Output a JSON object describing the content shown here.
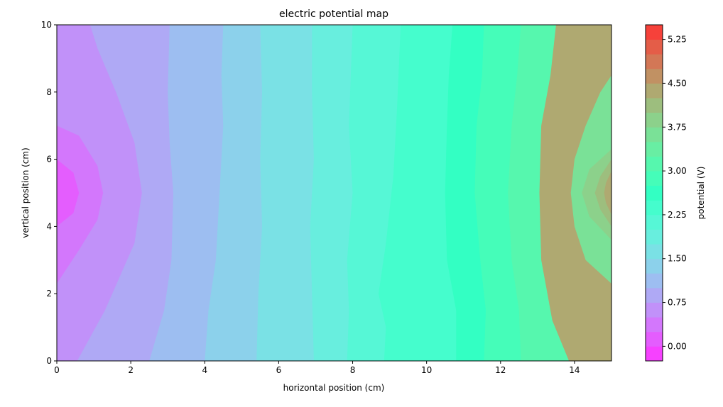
{
  "chart_data": {
    "type": "heatmap",
    "subtype": "filled-contour",
    "title": "electric potential map",
    "xlabel": "horizontal position (cm)",
    "ylabel": "vertical position (cm)",
    "xlim": [
      0,
      15
    ],
    "ylim": [
      0,
      10
    ],
    "xticks": [
      "0",
      "2",
      "4",
      "6",
      "8",
      "10",
      "12",
      "14"
    ],
    "yticks": [
      "0",
      "2",
      "4",
      "6",
      "8",
      "10"
    ],
    "colorbar": {
      "label": "potential (V)",
      "range": [
        -0.25,
        5.5
      ],
      "tick_values": [
        0.0,
        0.75,
        1.5,
        2.25,
        3.0,
        3.75,
        4.5,
        5.25
      ],
      "tick_labels": [
        "0.00",
        "0.75",
        "1.50",
        "2.25",
        "3.00",
        "3.75",
        "4.50",
        "5.25"
      ],
      "level_step": 0.25,
      "colormap": "rainbow",
      "alpha": 0.8
    },
    "contour_boundaries": [
      {
        "v": 0.25,
        "points": [
          [
            0,
            4.0
          ],
          [
            0.45,
            4.4
          ],
          [
            0.6,
            5.0
          ],
          [
            0.45,
            5.6
          ],
          [
            0,
            6.0
          ]
        ]
      },
      {
        "v": 0.5,
        "points": [
          [
            0,
            2.3
          ],
          [
            0.6,
            3.3
          ],
          [
            1.1,
            4.2
          ],
          [
            1.25,
            5.0
          ],
          [
            1.1,
            5.8
          ],
          [
            0.6,
            6.7
          ],
          [
            0,
            7.0
          ]
        ]
      },
      {
        "v": 0.75,
        "points": [
          [
            0.55,
            0
          ],
          [
            1.3,
            1.5
          ],
          [
            2.1,
            3.5
          ],
          [
            2.3,
            5.0
          ],
          [
            2.1,
            6.5
          ],
          [
            1.6,
            8.0
          ],
          [
            1.1,
            9.3
          ],
          [
            0.9,
            10
          ]
        ]
      },
      {
        "v": 1.0,
        "points": [
          [
            2.5,
            0
          ],
          [
            2.9,
            1.5
          ],
          [
            3.1,
            3.0
          ],
          [
            3.15,
            5.0
          ],
          [
            3.05,
            6.5
          ],
          [
            3.0,
            8.0
          ],
          [
            3.05,
            10
          ]
        ]
      },
      {
        "v": 1.25,
        "points": [
          [
            4.0,
            0
          ],
          [
            4.1,
            1.5
          ],
          [
            4.3,
            3.0
          ],
          [
            4.4,
            5.0
          ],
          [
            4.5,
            7.0
          ],
          [
            4.45,
            8.5
          ],
          [
            4.5,
            10
          ]
        ]
      },
      {
        "v": 1.5,
        "points": [
          [
            5.4,
            0
          ],
          [
            5.45,
            2.0
          ],
          [
            5.55,
            4.0
          ],
          [
            5.5,
            6.0
          ],
          [
            5.55,
            8.0
          ],
          [
            5.5,
            10
          ]
        ]
      },
      {
        "v": 1.75,
        "points": [
          [
            6.95,
            0
          ],
          [
            6.9,
            2.0
          ],
          [
            6.85,
            4.0
          ],
          [
            6.95,
            6.0
          ],
          [
            6.9,
            8.0
          ],
          [
            6.9,
            10
          ]
        ]
      },
      {
        "v": 2.0,
        "points": [
          [
            7.85,
            0
          ],
          [
            7.9,
            1.5
          ],
          [
            7.85,
            3.0
          ],
          [
            8.0,
            5.0
          ],
          [
            7.9,
            7.0
          ],
          [
            7.95,
            8.5
          ],
          [
            8.0,
            10
          ]
        ]
      },
      {
        "v": 2.25,
        "points": [
          [
            8.85,
            0
          ],
          [
            8.9,
            1.0
          ],
          [
            8.7,
            2.0
          ],
          [
            8.9,
            3.5
          ],
          [
            9.1,
            5.5
          ],
          [
            9.2,
            7.5
          ],
          [
            9.3,
            10
          ]
        ]
      },
      {
        "v": 2.5,
        "points": [
          [
            10.8,
            0
          ],
          [
            10.8,
            1.5
          ],
          [
            10.55,
            3.0
          ],
          [
            10.5,
            5.0
          ],
          [
            10.55,
            7.0
          ],
          [
            10.6,
            8.5
          ],
          [
            10.7,
            10
          ]
        ]
      },
      {
        "v": 2.75,
        "points": [
          [
            11.55,
            0
          ],
          [
            11.6,
            1.5
          ],
          [
            11.45,
            3.0
          ],
          [
            11.3,
            5.0
          ],
          [
            11.35,
            7.0
          ],
          [
            11.5,
            8.5
          ],
          [
            11.55,
            10
          ]
        ]
      },
      {
        "v": 3.0,
        "points": [
          [
            12.55,
            0
          ],
          [
            12.5,
            1.5
          ],
          [
            12.3,
            3.0
          ],
          [
            12.2,
            5.0
          ],
          [
            12.3,
            7.0
          ],
          [
            12.45,
            8.5
          ],
          [
            12.55,
            10
          ]
        ]
      },
      {
        "v": 3.25,
        "points": [
          [
            13.85,
            0
          ],
          [
            13.4,
            1.2
          ],
          [
            13.1,
            3.0
          ],
          [
            13.05,
            5.0
          ],
          [
            13.1,
            7.0
          ],
          [
            13.35,
            8.5
          ],
          [
            13.5,
            10
          ]
        ]
      },
      {
        "v": 3.5,
        "points": [
          [
            15,
            2.3
          ],
          [
            14.3,
            3.0
          ],
          [
            14.0,
            4.0
          ],
          [
            13.9,
            5.0
          ],
          [
            14.0,
            6.0
          ],
          [
            14.3,
            7.0
          ],
          [
            14.7,
            8.0
          ],
          [
            15,
            8.5
          ]
        ]
      },
      {
        "v": 3.75,
        "points": [
          [
            15,
            3.6
          ],
          [
            14.4,
            4.3
          ],
          [
            14.2,
            5.0
          ],
          [
            14.4,
            5.7
          ],
          [
            15,
            6.3
          ]
        ]
      },
      {
        "v": 4.0,
        "points": [
          [
            15,
            4.0
          ],
          [
            14.7,
            4.5
          ],
          [
            14.55,
            5.0
          ],
          [
            14.7,
            5.5
          ],
          [
            15,
            6.0
          ]
        ]
      },
      {
        "v": 4.25,
        "points": [
          [
            15,
            4.35
          ],
          [
            14.85,
            4.7
          ],
          [
            14.8,
            5.0
          ],
          [
            14.85,
            5.3
          ],
          [
            15,
            5.65
          ]
        ]
      }
    ],
    "region_potentials": [
      0.125,
      0.375,
      0.625,
      0.875,
      1.125,
      1.375,
      1.625,
      1.875,
      2.125,
      2.375,
      2.625,
      2.875,
      3.125,
      3.375,
      3.625,
      3.875,
      4.125,
      4.375
    ]
  }
}
